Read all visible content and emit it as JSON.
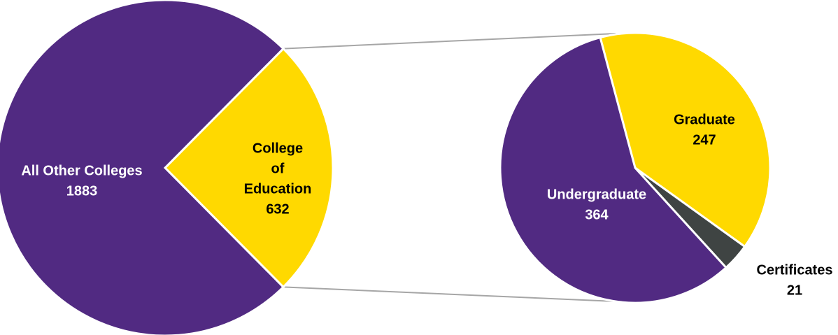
{
  "chart_data": [
    {
      "type": "pie",
      "title": "",
      "slices": [
        {
          "label_lines": [
            "All Other Colleges"
          ],
          "value": 1883,
          "value_text": "1883",
          "color": "#512a82",
          "text_color": "#ffffff"
        },
        {
          "label_lines": [
            "College",
            "of",
            "Education"
          ],
          "value": 632,
          "value_text": "632",
          "color": "#ffd900",
          "text_color": "#000000"
        }
      ]
    },
    {
      "type": "pie",
      "title": "",
      "slices": [
        {
          "label_lines": [
            "Graduate"
          ],
          "value": 247,
          "value_text": "247",
          "color": "#ffd900",
          "text_color": "#000000"
        },
        {
          "label_lines": [
            "Certificates"
          ],
          "value": 21,
          "value_text": "21",
          "color": "#3f4443",
          "text_color": "#000000"
        },
        {
          "label_lines": [
            "Undergraduate"
          ],
          "value": 364,
          "value_text": "364",
          "color": "#512a82",
          "text_color": "#ffffff"
        }
      ]
    }
  ],
  "colors": {
    "connector": "#a6a6a6",
    "slice_border": "#ffffff"
  }
}
